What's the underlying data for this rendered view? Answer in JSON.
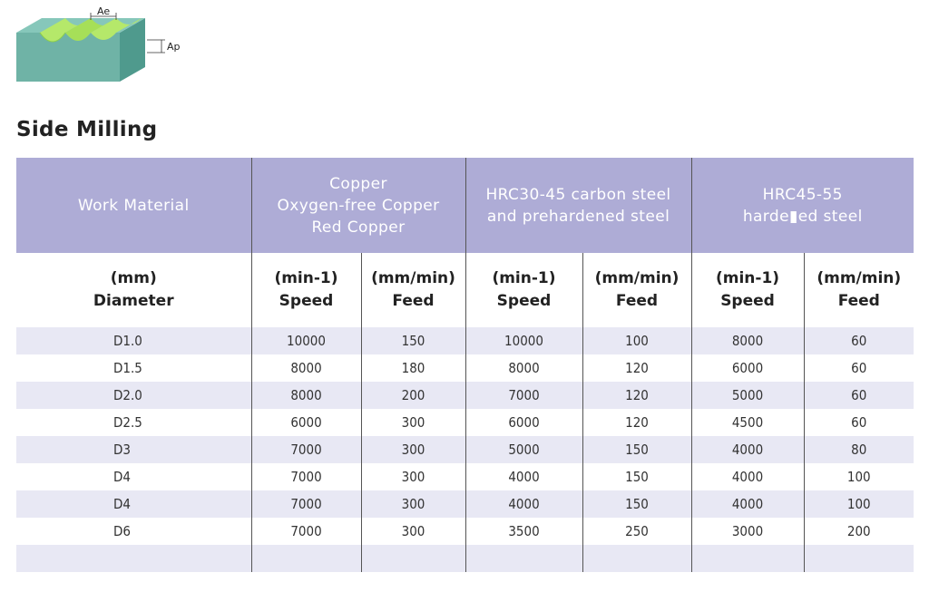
{
  "diagram": {
    "label_ae": "Ae",
    "label_ap": "Ap",
    "colors": {
      "block_top": "#7fbfb2",
      "block_side": "#5aa396",
      "block_front": "#6fb3a6",
      "cut_green": "#b5e86a"
    }
  },
  "title": "Side Milling",
  "table": {
    "group_headers": [
      {
        "lines": [
          "Work Material"
        ]
      },
      {
        "lines": [
          "Copper",
          "Oxygen-free Copper",
          "Red Copper"
        ]
      },
      {
        "lines": [
          "HRC30-45 carbon steel",
          "and prehardened steel"
        ]
      },
      {
        "lines": [
          "HRC45-55",
          "harde▮ed steel"
        ]
      }
    ],
    "sub_headers": [
      {
        "unit": "(mm)",
        "label": "Diameter"
      },
      {
        "unit": "(min-1)",
        "label": "Speed"
      },
      {
        "unit": "(mm/min)",
        "label": "Feed"
      },
      {
        "unit": "(min-1)",
        "label": "Speed"
      },
      {
        "unit": "(mm/min)",
        "label": "Feed"
      },
      {
        "unit": "(min-1)",
        "label": "Speed"
      },
      {
        "unit": "(mm/min)",
        "label": "Feed"
      }
    ],
    "rows": [
      [
        "D1.0",
        "10000",
        "150",
        "10000",
        "100",
        "8000",
        "60"
      ],
      [
        "D1.5",
        "8000",
        "180",
        "8000",
        "120",
        "6000",
        "60"
      ],
      [
        "D2.0",
        "8000",
        "200",
        "7000",
        "120",
        "5000",
        "60"
      ],
      [
        "D2.5",
        "6000",
        "300",
        "6000",
        "120",
        "4500",
        "60"
      ],
      [
        "D3",
        "7000",
        "300",
        "5000",
        "150",
        "4000",
        "80"
      ],
      [
        "D4",
        "7000",
        "300",
        "4000",
        "150",
        "4000",
        "100"
      ],
      [
        "D4",
        "7000",
        "300",
        "4000",
        "150",
        "4000",
        "100"
      ],
      [
        "D6",
        "7000",
        "300",
        "3500",
        "250",
        "3000",
        "200"
      ],
      [
        "",
        "",
        "",
        "",
        "",
        "",
        ""
      ]
    ],
    "colors": {
      "header_bg": "#aeacd6",
      "row_shade": "#e8e8f4"
    }
  }
}
